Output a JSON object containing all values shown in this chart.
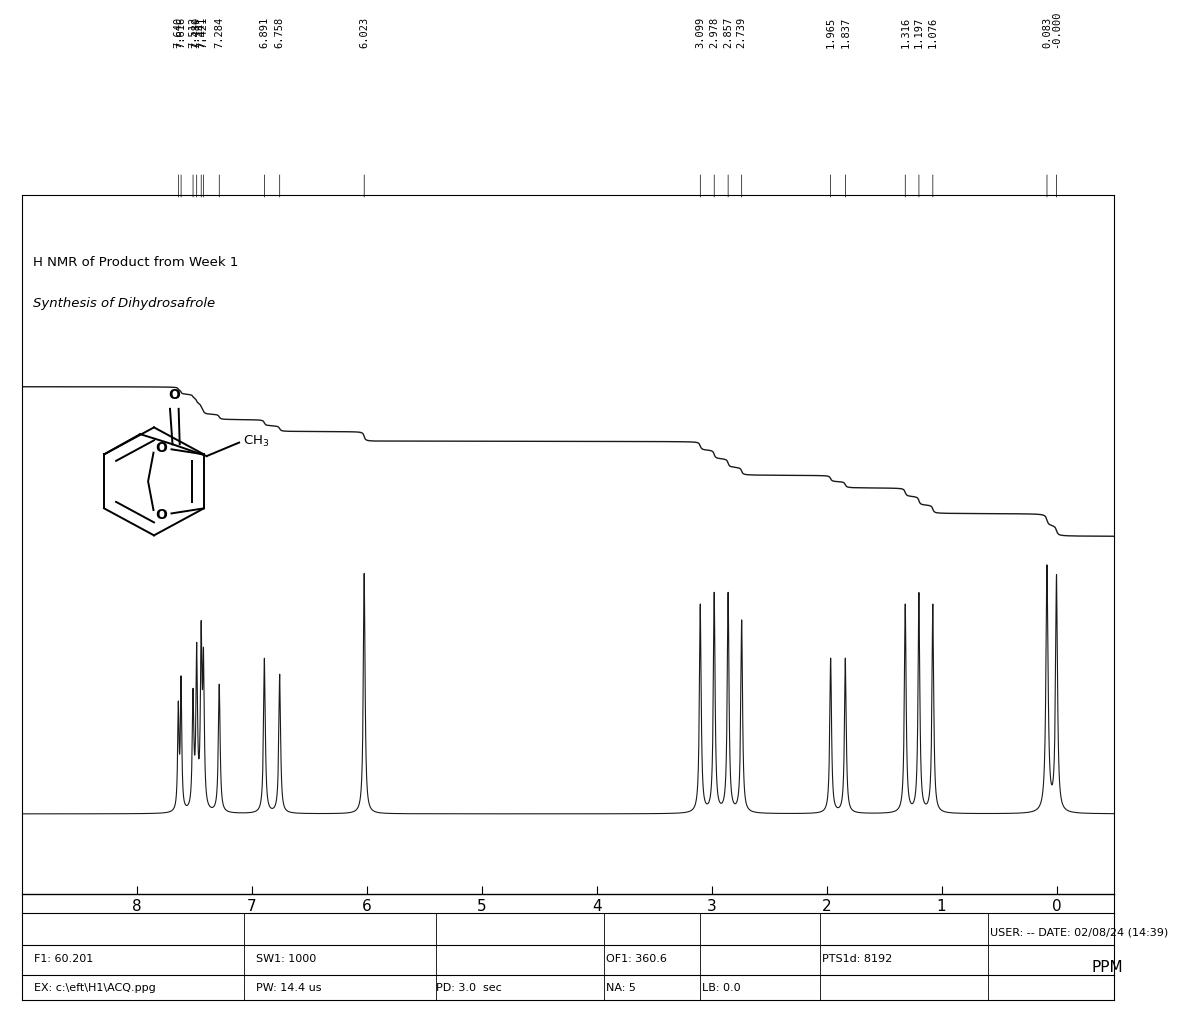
{
  "title_line1": "H NMR of Product from Week 1",
  "title_line2": "Synthesis of Dihydrosafrole",
  "x_label": "PPM",
  "x_min": -0.5,
  "x_max": 9.0,
  "x_ticks": [
    0,
    1,
    2,
    3,
    4,
    5,
    6,
    7,
    8
  ],
  "peak_labels_aromatic": [
    7.64,
    7.616,
    7.512,
    7.48,
    7.441,
    7.421,
    7.284,
    6.891,
    6.758
  ],
  "peak_labels_ch2o": [
    6.023
  ],
  "peak_labels_ch2": [
    3.099,
    2.978,
    2.857,
    2.739
  ],
  "peak_labels_ch2b": [
    1.965,
    1.837
  ],
  "peak_labels_ch3a": [
    1.316,
    1.197,
    1.076
  ],
  "peak_labels_tms": [
    0.083,
    0.0
  ],
  "footer_left1": "F1: 60.201",
  "footer_left2": "EX: c:\\eft\\H1\\ACQ.ppg",
  "footer_mid1": "SW1: 1000",
  "footer_mid2": "PW: 14.4 us",
  "footer_mid3": "PD: 3.0  sec",
  "footer_of1": "OF1: 360.6",
  "footer_na": "NA: 5",
  "footer_lb": "LB: 0.0",
  "footer_pts": "PTS1d: 8192",
  "footer_user": "USER: -- DATE: 02/08/24 (14:39)",
  "spectrum_color": "#1a1a1a",
  "integral_color": "#1a1a1a"
}
